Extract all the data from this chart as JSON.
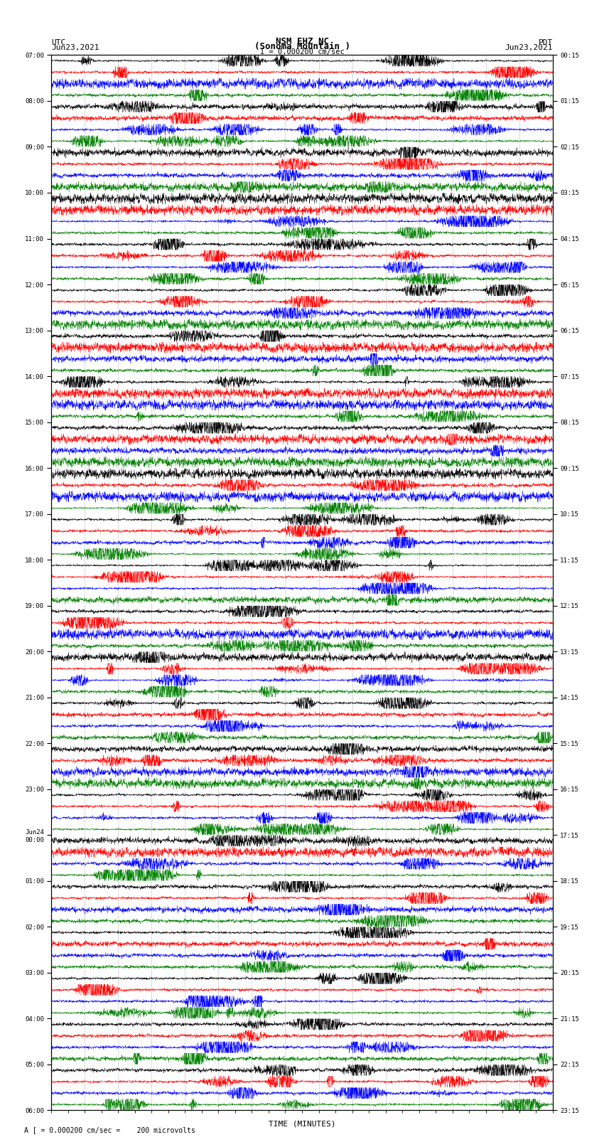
{
  "title_line1": "NSM EHZ NC",
  "title_line2": "(Sonoma Mountain )",
  "title_line3": "I = 0.000200 cm/sec",
  "left_header_line1": "UTC",
  "left_header_line2": "Jun23,2021",
  "right_header_line1": "PDT",
  "right_header_line2": "Jun23,2021",
  "xlabel": "TIME (MINUTES)",
  "footer": "A [ = 0.000200 cm/sec =    200 microvolts",
  "time_minutes": 15,
  "trace_colors": [
    "black",
    "red",
    "blue",
    "green"
  ],
  "bg_color": "white",
  "tick_label_fontsize": 7,
  "header_fontsize": 8,
  "title_fontsize": 9,
  "utc_hours_left": [
    "07:00",
    "08:00",
    "09:00",
    "10:00",
    "11:00",
    "12:00",
    "13:00",
    "14:00",
    "15:00",
    "16:00",
    "17:00",
    "18:00",
    "19:00",
    "20:00",
    "21:00",
    "22:00",
    "23:00",
    "Jun24",
    "00:00",
    "01:00",
    "02:00",
    "03:00",
    "04:00",
    "05:00",
    "06:00"
  ],
  "pdt_hours_right": [
    "00:15",
    "01:15",
    "02:15",
    "03:15",
    "04:15",
    "05:15",
    "06:15",
    "07:15",
    "08:15",
    "09:15",
    "10:15",
    "11:15",
    "12:15",
    "13:15",
    "14:15",
    "15:15",
    "16:15",
    "17:15",
    "18:15",
    "19:15",
    "20:15",
    "21:15",
    "22:15",
    "23:15"
  ]
}
